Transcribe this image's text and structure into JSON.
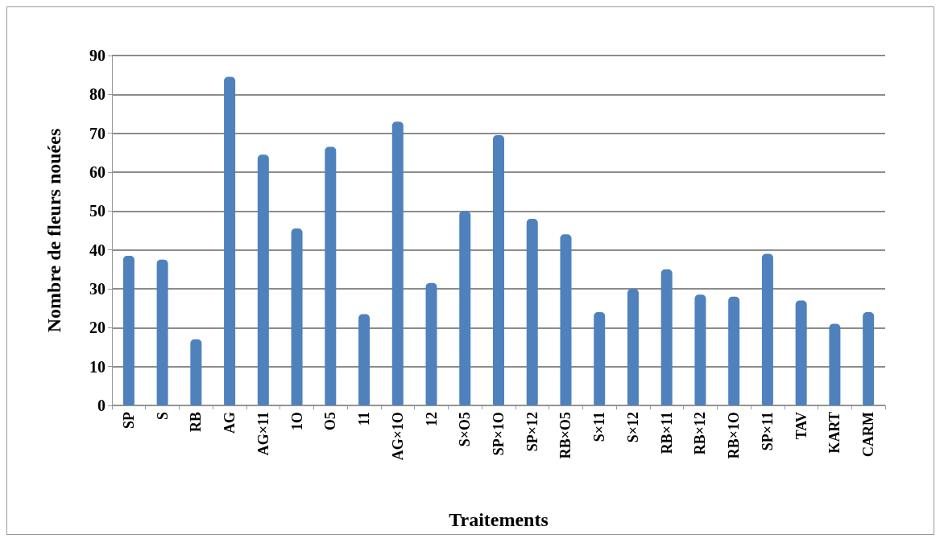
{
  "chart_data": {
    "type": "bar",
    "xlabel": "Traitements",
    "ylabel": "Nombre de fleurs nouées",
    "categories": [
      "SP",
      "S",
      "RB",
      "AG",
      "AG×11",
      "1O",
      "O5",
      "11",
      "AG×1O",
      "12",
      "S×O5",
      "SP×1O",
      "SP×12",
      "RB×O5",
      "S×11",
      "S×12",
      "RB×11",
      "RB×12",
      "RB×1O",
      "SP×11",
      "TAV",
      "KART",
      "CARM"
    ],
    "values": [
      38.5,
      37.5,
      17,
      84.5,
      64.5,
      45.5,
      66.5,
      23.5,
      73,
      31.5,
      50,
      69.5,
      48,
      44,
      24,
      30,
      35,
      28.5,
      28,
      39,
      27,
      21,
      24
    ],
    "color": "#4f81bd",
    "ylim": [
      0,
      90
    ],
    "yticks": [
      0,
      10,
      20,
      30,
      40,
      50,
      60,
      70,
      80,
      90
    ],
    "grid": "y"
  }
}
